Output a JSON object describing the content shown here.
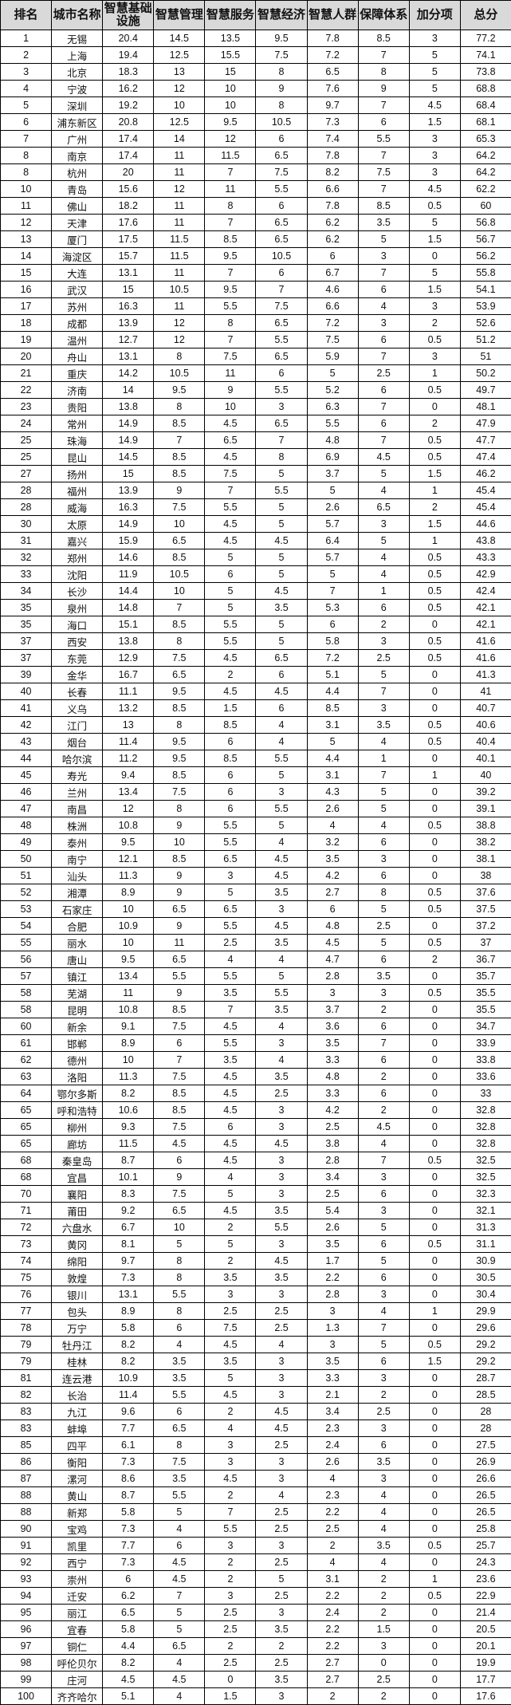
{
  "headers": [
    "排名",
    "城市名称",
    "智慧基础设施",
    "智慧管理",
    "智慧服务",
    "智慧经济",
    "智慧人群",
    "保障体系",
    "加分项",
    "总分"
  ],
  "rows": [
    [
      "1",
      "无锡",
      "20.4",
      "14.5",
      "13.5",
      "9.5",
      "7.8",
      "8.5",
      "3",
      "77.2"
    ],
    [
      "2",
      "上海",
      "19.4",
      "12.5",
      "15.5",
      "7.5",
      "7.2",
      "7",
      "5",
      "74.1"
    ],
    [
      "3",
      "北京",
      "18.3",
      "13",
      "15",
      "8",
      "6.5",
      "8",
      "5",
      "73.8"
    ],
    [
      "4",
      "宁波",
      "16.2",
      "12",
      "10",
      "9",
      "7.6",
      "9",
      "5",
      "68.8"
    ],
    [
      "5",
      "深圳",
      "19.2",
      "10",
      "10",
      "8",
      "9.7",
      "7",
      "4.5",
      "68.4"
    ],
    [
      "6",
      "浦东新区",
      "20.8",
      "12.5",
      "9.5",
      "10.5",
      "7.3",
      "6",
      "1.5",
      "68.1"
    ],
    [
      "7",
      "广州",
      "17.4",
      "14",
      "12",
      "6",
      "7.4",
      "5.5",
      "3",
      "65.3"
    ],
    [
      "8",
      "南京",
      "17.4",
      "11",
      "11.5",
      "6.5",
      "7.8",
      "7",
      "3",
      "64.2"
    ],
    [
      "8",
      "杭州",
      "20",
      "11",
      "7",
      "7.5",
      "8.2",
      "7.5",
      "3",
      "64.2"
    ],
    [
      "10",
      "青岛",
      "15.6",
      "12",
      "11",
      "5.5",
      "6.6",
      "7",
      "4.5",
      "62.2"
    ],
    [
      "11",
      "佛山",
      "18.2",
      "11",
      "8",
      "6",
      "7.8",
      "8.5",
      "0.5",
      "60"
    ],
    [
      "12",
      "天津",
      "17.6",
      "11",
      "7",
      "6.5",
      "6.2",
      "3.5",
      "5",
      "56.8"
    ],
    [
      "13",
      "厦门",
      "17.5",
      "11.5",
      "8.5",
      "6.5",
      "6.2",
      "5",
      "1.5",
      "56.7"
    ],
    [
      "14",
      "海淀区",
      "15.7",
      "11.5",
      "9.5",
      "10.5",
      "6",
      "3",
      "0",
      "56.2"
    ],
    [
      "15",
      "大连",
      "13.1",
      "11",
      "7",
      "6",
      "6.7",
      "7",
      "5",
      "55.8"
    ],
    [
      "16",
      "武汉",
      "15",
      "10.5",
      "9.5",
      "7",
      "4.6",
      "6",
      "1.5",
      "54.1"
    ],
    [
      "17",
      "苏州",
      "16.3",
      "11",
      "5.5",
      "7.5",
      "6.6",
      "4",
      "3",
      "53.9"
    ],
    [
      "18",
      "成都",
      "13.9",
      "12",
      "8",
      "6.5",
      "7.2",
      "3",
      "2",
      "52.6"
    ],
    [
      "19",
      "温州",
      "12.7",
      "12",
      "7",
      "5.5",
      "7.5",
      "6",
      "0.5",
      "51.2"
    ],
    [
      "20",
      "舟山",
      "13.1",
      "8",
      "7.5",
      "6.5",
      "5.9",
      "7",
      "3",
      "51"
    ],
    [
      "21",
      "重庆",
      "14.2",
      "10.5",
      "11",
      "6",
      "5",
      "2.5",
      "1",
      "50.2"
    ],
    [
      "22",
      "济南",
      "14",
      "9.5",
      "9",
      "5.5",
      "5.2",
      "6",
      "0.5",
      "49.7"
    ],
    [
      "23",
      "贵阳",
      "13.8",
      "8",
      "10",
      "3",
      "6.3",
      "7",
      "0",
      "48.1"
    ],
    [
      "24",
      "常州",
      "14.9",
      "8.5",
      "4.5",
      "6.5",
      "5.5",
      "6",
      "2",
      "47.9"
    ],
    [
      "25",
      "珠海",
      "14.9",
      "7",
      "6.5",
      "7",
      "4.8",
      "7",
      "0.5",
      "47.7"
    ],
    [
      "25",
      "昆山",
      "14.5",
      "8.5",
      "4.5",
      "8",
      "6.9",
      "4.5",
      "0.5",
      "47.4"
    ],
    [
      "27",
      "扬州",
      "15",
      "8.5",
      "7.5",
      "5",
      "3.7",
      "5",
      "1.5",
      "46.2"
    ],
    [
      "28",
      "福州",
      "13.9",
      "9",
      "7",
      "5.5",
      "5",
      "4",
      "1",
      "45.4"
    ],
    [
      "28",
      "威海",
      "16.3",
      "7.5",
      "5.5",
      "5",
      "2.6",
      "6.5",
      "2",
      "45.4"
    ],
    [
      "30",
      "太原",
      "14.9",
      "10",
      "4.5",
      "5",
      "5.7",
      "3",
      "1.5",
      "44.6"
    ],
    [
      "31",
      "嘉兴",
      "15.9",
      "6.5",
      "4.5",
      "4.5",
      "6.4",
      "5",
      "1",
      "43.8"
    ],
    [
      "32",
      "郑州",
      "14.6",
      "8.5",
      "5",
      "5",
      "5.7",
      "4",
      "0.5",
      "43.3"
    ],
    [
      "33",
      "沈阳",
      "11.9",
      "10.5",
      "6",
      "5",
      "5",
      "4",
      "0.5",
      "42.9"
    ],
    [
      "34",
      "长沙",
      "14.4",
      "10",
      "5",
      "4.5",
      "7",
      "1",
      "0.5",
      "42.4"
    ],
    [
      "35",
      "泉州",
      "14.8",
      "7",
      "5",
      "3.5",
      "5.3",
      "6",
      "0.5",
      "42.1"
    ],
    [
      "35",
      "海口",
      "15.1",
      "8.5",
      "5.5",
      "5",
      "6",
      "2",
      "0",
      "42.1"
    ],
    [
      "37",
      "西安",
      "13.8",
      "8",
      "5.5",
      "5",
      "5.8",
      "3",
      "0.5",
      "41.6"
    ],
    [
      "37",
      "东莞",
      "12.9",
      "7.5",
      "4.5",
      "6.5",
      "7.2",
      "2.5",
      "0.5",
      "41.6"
    ],
    [
      "39",
      "金华",
      "16.7",
      "6.5",
      "2",
      "6",
      "5.1",
      "5",
      "0",
      "41.3"
    ],
    [
      "40",
      "长春",
      "11.1",
      "9.5",
      "4.5",
      "4.5",
      "4.4",
      "7",
      "0",
      "41"
    ],
    [
      "41",
      "义乌",
      "13.2",
      "8.5",
      "1.5",
      "6",
      "8.5",
      "3",
      "0",
      "40.7"
    ],
    [
      "42",
      "江门",
      "13",
      "8",
      "8.5",
      "4",
      "3.1",
      "3.5",
      "0.5",
      "40.6"
    ],
    [
      "43",
      "烟台",
      "11.4",
      "9.5",
      "6",
      "4",
      "5",
      "4",
      "0.5",
      "40.4"
    ],
    [
      "44",
      "哈尔滨",
      "11.2",
      "9.5",
      "8.5",
      "5.5",
      "4.4",
      "1",
      "0",
      "40.1"
    ],
    [
      "45",
      "寿光",
      "9.4",
      "8.5",
      "6",
      "5",
      "3.1",
      "7",
      "1",
      "40"
    ],
    [
      "46",
      "兰州",
      "13.4",
      "7.5",
      "6",
      "3",
      "4.3",
      "5",
      "0",
      "39.2"
    ],
    [
      "47",
      "南昌",
      "12",
      "8",
      "6",
      "5.5",
      "2.6",
      "5",
      "0",
      "39.1"
    ],
    [
      "48",
      "株洲",
      "10.8",
      "9",
      "5.5",
      "5",
      "4",
      "4",
      "0.5",
      "38.8"
    ],
    [
      "49",
      "泰州",
      "9.5",
      "10",
      "5.5",
      "4",
      "3.2",
      "6",
      "0",
      "38.2"
    ],
    [
      "50",
      "南宁",
      "12.1",
      "8.5",
      "6.5",
      "4.5",
      "3.5",
      "3",
      "0",
      "38.1"
    ],
    [
      "51",
      "汕头",
      "11.3",
      "9",
      "3",
      "4.5",
      "4.2",
      "6",
      "0",
      "38"
    ],
    [
      "52",
      "湘潭",
      "8.9",
      "9",
      "5",
      "3.5",
      "2.7",
      "8",
      "0.5",
      "37.6"
    ],
    [
      "53",
      "石家庄",
      "10",
      "6.5",
      "6.5",
      "3",
      "6",
      "5",
      "0.5",
      "37.5"
    ],
    [
      "54",
      "合肥",
      "10.9",
      "9",
      "5.5",
      "4.5",
      "4.8",
      "2.5",
      "0",
      "37.2"
    ],
    [
      "55",
      "丽水",
      "10",
      "11",
      "2.5",
      "3.5",
      "4.5",
      "5",
      "0.5",
      "37"
    ],
    [
      "56",
      "唐山",
      "9.5",
      "6.5",
      "4",
      "4",
      "4.7",
      "6",
      "2",
      "36.7"
    ],
    [
      "57",
      "镇江",
      "13.4",
      "5.5",
      "5.5",
      "5",
      "2.8",
      "3.5",
      "0",
      "35.7"
    ],
    [
      "58",
      "芜湖",
      "11",
      "9",
      "3.5",
      "5.5",
      "3",
      "3",
      "0.5",
      "35.5"
    ],
    [
      "58",
      "昆明",
      "10.8",
      "8.5",
      "7",
      "3.5",
      "3.7",
      "2",
      "0",
      "35.5"
    ],
    [
      "60",
      "新余",
      "9.1",
      "7.5",
      "4.5",
      "4",
      "3.6",
      "6",
      "0",
      "34.7"
    ],
    [
      "61",
      "邯郸",
      "8.9",
      "6",
      "5.5",
      "3",
      "3.5",
      "7",
      "0",
      "33.9"
    ],
    [
      "62",
      "德州",
      "10",
      "7",
      "3.5",
      "4",
      "3.3",
      "6",
      "0",
      "33.8"
    ],
    [
      "63",
      "洛阳",
      "11.3",
      "7.5",
      "4.5",
      "3.5",
      "4.8",
      "2",
      "0",
      "33.6"
    ],
    [
      "64",
      "鄂尔多斯",
      "8.2",
      "8.5",
      "4.5",
      "2.5",
      "3.3",
      "6",
      "0",
      "33"
    ],
    [
      "65",
      "呼和浩特",
      "10.6",
      "8.5",
      "4.5",
      "3",
      "4.2",
      "2",
      "0",
      "32.8"
    ],
    [
      "65",
      "柳州",
      "9.3",
      "7.5",
      "6",
      "3",
      "2.5",
      "4.5",
      "0",
      "32.8"
    ],
    [
      "65",
      "廊坊",
      "11.5",
      "4.5",
      "4.5",
      "4.5",
      "3.8",
      "4",
      "0",
      "32.8"
    ],
    [
      "68",
      "秦皇岛",
      "8.7",
      "6",
      "4.5",
      "3",
      "2.8",
      "7",
      "0.5",
      "32.5"
    ],
    [
      "68",
      "宜昌",
      "10.1",
      "9",
      "4",
      "3",
      "3.4",
      "3",
      "0",
      "32.5"
    ],
    [
      "70",
      "襄阳",
      "8.3",
      "7.5",
      "5",
      "3",
      "2.5",
      "6",
      "0",
      "32.3"
    ],
    [
      "71",
      "莆田",
      "9.2",
      "6.5",
      "4.5",
      "3.5",
      "5.4",
      "3",
      "0",
      "32.1"
    ],
    [
      "72",
      "六盘水",
      "6.7",
      "10",
      "2",
      "5.5",
      "2.6",
      "5",
      "0",
      "31.3"
    ],
    [
      "73",
      "黄冈",
      "8.1",
      "5",
      "5",
      "3",
      "3.5",
      "6",
      "0.5",
      "31.1"
    ],
    [
      "74",
      "绵阳",
      "9.7",
      "8",
      "2",
      "4.5",
      "1.7",
      "5",
      "0",
      "30.9"
    ],
    [
      "75",
      "敦煌",
      "7.3",
      "8",
      "3.5",
      "3.5",
      "2.2",
      "6",
      "0",
      "30.5"
    ],
    [
      "76",
      "银川",
      "13.1",
      "5.5",
      "3",
      "3",
      "2.8",
      "3",
      "0",
      "30.4"
    ],
    [
      "77",
      "包头",
      "8.9",
      "8",
      "2.5",
      "2.5",
      "3",
      "4",
      "1",
      "29.9"
    ],
    [
      "78",
      "万宁",
      "5.8",
      "6",
      "7.5",
      "2.5",
      "1.3",
      "7",
      "0",
      "29.6"
    ],
    [
      "79",
      "牡丹江",
      "8.2",
      "4",
      "4.5",
      "4",
      "3",
      "5",
      "0.5",
      "29.2"
    ],
    [
      "79",
      "桂林",
      "8.2",
      "3.5",
      "3.5",
      "3",
      "3.5",
      "6",
      "1.5",
      "29.2"
    ],
    [
      "81",
      "连云港",
      "10.9",
      "3.5",
      "5",
      "3",
      "3.3",
      "3",
      "0",
      "28.7"
    ],
    [
      "82",
      "长治",
      "11.4",
      "5.5",
      "4.5",
      "3",
      "2.1",
      "2",
      "0",
      "28.5"
    ],
    [
      "83",
      "九江",
      "9.6",
      "6",
      "2",
      "4.5",
      "3.4",
      "2.5",
      "0",
      "28"
    ],
    [
      "83",
      "蚌埠",
      "7.7",
      "6.5",
      "4",
      "4.5",
      "2.3",
      "3",
      "0",
      "28"
    ],
    [
      "85",
      "四平",
      "6.1",
      "8",
      "3",
      "2.5",
      "2.4",
      "6",
      "0",
      "27.5"
    ],
    [
      "86",
      "衡阳",
      "7.3",
      "7.5",
      "3",
      "3",
      "2.6",
      "3.5",
      "0",
      "26.9"
    ],
    [
      "87",
      "漯河",
      "8.6",
      "3.5",
      "4.5",
      "3",
      "4",
      "3",
      "0",
      "26.6"
    ],
    [
      "88",
      "黄山",
      "8.7",
      "5.5",
      "2",
      "4",
      "2.3",
      "4",
      "0",
      "26.5"
    ],
    [
      "88",
      "新郑",
      "5.8",
      "5",
      "7",
      "2.5",
      "2.2",
      "4",
      "0",
      "26.5"
    ],
    [
      "90",
      "宝鸡",
      "7.3",
      "4",
      "5.5",
      "2.5",
      "2.5",
      "4",
      "0",
      "25.8"
    ],
    [
      "91",
      "凯里",
      "7.7",
      "6",
      "3",
      "3",
      "2",
      "3.5",
      "0.5",
      "25.7"
    ],
    [
      "92",
      "西宁",
      "7.3",
      "4.5",
      "2",
      "2.5",
      "4",
      "4",
      "0",
      "24.3"
    ],
    [
      "93",
      "崇州",
      "6",
      "4.5",
      "2",
      "5",
      "3.1",
      "2",
      "1",
      "23.6"
    ],
    [
      "94",
      "迁安",
      "6.2",
      "7",
      "3",
      "2.5",
      "2.2",
      "2",
      "0.5",
      "22.9"
    ],
    [
      "95",
      "丽江",
      "6.5",
      "5",
      "2.5",
      "3",
      "2.4",
      "2",
      "0",
      "21.4"
    ],
    [
      "96",
      "宜春",
      "5.8",
      "5",
      "2.5",
      "3.5",
      "2.2",
      "1.5",
      "0",
      "20.5"
    ],
    [
      "97",
      "铜仁",
      "4.4",
      "6.5",
      "2",
      "2",
      "2.2",
      "3",
      "0",
      "20.1"
    ],
    [
      "98",
      "呼伦贝尔",
      "8.2",
      "4",
      "2.5",
      "2.5",
      "2.7",
      "0",
      "0",
      "19.9"
    ],
    [
      "99",
      "庄河",
      "4.5",
      "4.5",
      "0",
      "3.5",
      "2.7",
      "2.5",
      "0",
      "17.7"
    ],
    [
      "100",
      "齐齐哈尔",
      "5.1",
      "4",
      "1.5",
      "3",
      "2",
      "2",
      "0",
      "17.6"
    ]
  ]
}
